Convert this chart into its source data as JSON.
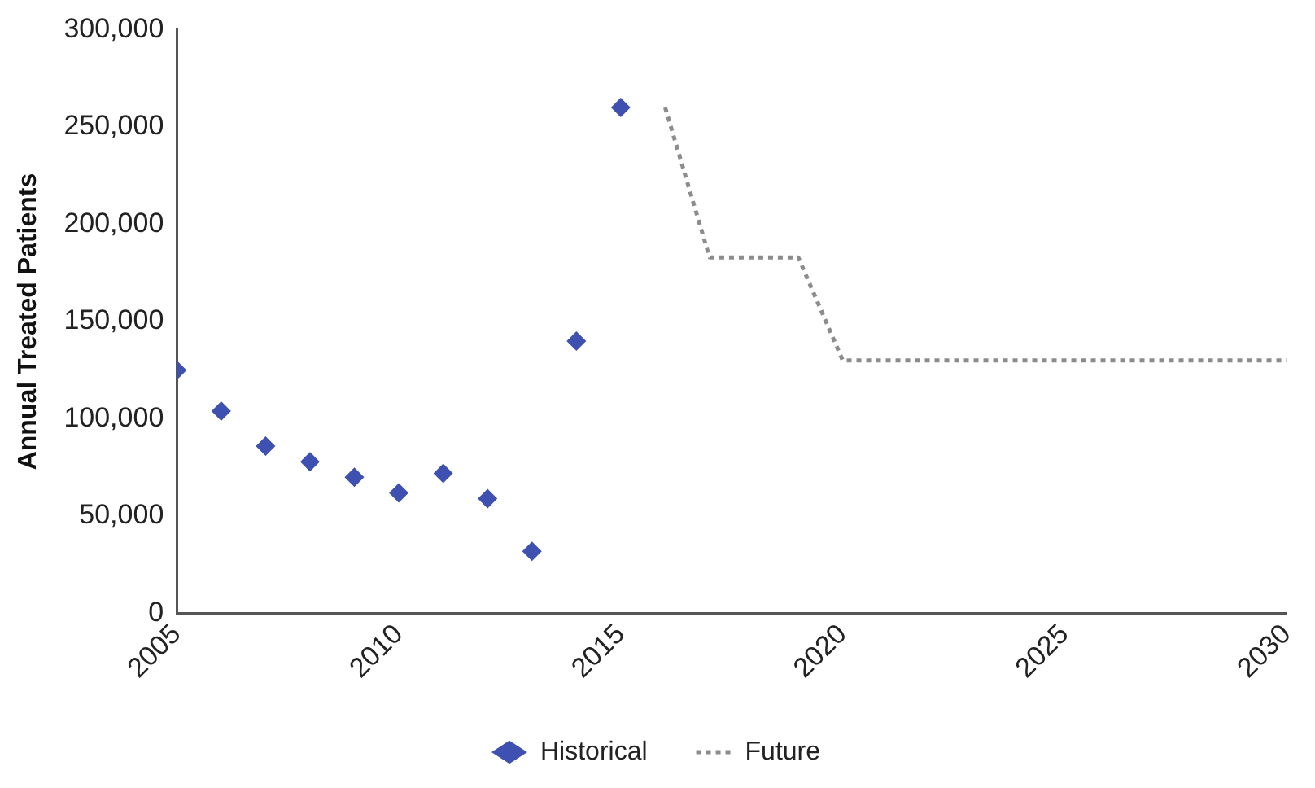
{
  "chart_data": {
    "type": "scatter",
    "ylabel": "Annual Treated Patients",
    "xlim": [
      2005,
      2030
    ],
    "xticks": [
      2005,
      2010,
      2015,
      2020,
      2025,
      2030
    ],
    "ylim": [
      0,
      300000
    ],
    "yticks": [
      {
        "value": 0,
        "label": "0"
      },
      {
        "value": 50000,
        "label": "50,000"
      },
      {
        "value": 100000,
        "label": "100,000"
      },
      {
        "value": 150000,
        "label": "150,000"
      },
      {
        "value": 200000,
        "label": "200,000"
      },
      {
        "value": 250000,
        "label": "250,000"
      },
      {
        "value": 300000,
        "label": "300,000"
      }
    ],
    "grid": false,
    "legend": "bottom",
    "series": [
      {
        "name": "Historical",
        "type": "scatter",
        "marker": "diamond",
        "color": "#3f51b0",
        "x": [
          2005,
          2006,
          2007,
          2008,
          2009,
          2010,
          2011,
          2012,
          2013,
          2014,
          2015
        ],
        "values": [
          125000,
          104000,
          86000,
          78000,
          70000,
          62000,
          72000,
          59000,
          32000,
          140000,
          260000
        ]
      },
      {
        "name": "Future",
        "type": "line",
        "marker": "none",
        "line_style": "dotted",
        "color": "#8c8c8c",
        "x": [
          2016,
          2017,
          2019,
          2020,
          2030
        ],
        "values": [
          260000,
          183000,
          183000,
          130000,
          130000
        ]
      }
    ]
  }
}
